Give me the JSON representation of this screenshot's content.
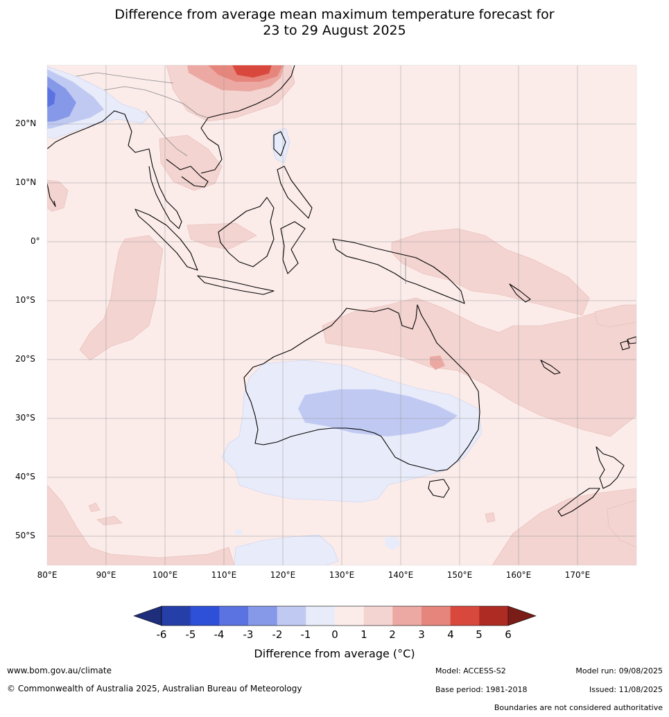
{
  "title_line1": "Difference from average mean maximum temperature forecast for",
  "title_line2": "23 to 29 August 2025",
  "lat_labels": [
    "20°N",
    "10°N",
    "0°",
    "10°S",
    "20°S",
    "30°S",
    "40°S",
    "50°S"
  ],
  "lon_labels": [
    "80°E",
    "90°E",
    "100°E",
    "110°E",
    "120°E",
    "130°E",
    "140°E",
    "150°E",
    "160°E",
    "170°E"
  ],
  "colorbar": {
    "ticks": [
      "-6",
      "-5",
      "-4",
      "-3",
      "-2",
      "-1",
      "0",
      "1",
      "2",
      "3",
      "4",
      "5",
      "6"
    ],
    "colors": [
      "#1f2e7a",
      "#263ea8",
      "#2e4fd8",
      "#5a73e0",
      "#8599e8",
      "#c0c9f2",
      "#e8ebf9",
      "#fbecea",
      "#f3d4d1",
      "#eca8a2",
      "#e6857b",
      "#d9483c",
      "#ad2b22",
      "#7a1c18"
    ],
    "label": "Difference from average (°C)"
  },
  "footer": {
    "website": "www.bom.gov.au/climate",
    "copyright": "© Commonwealth of Australia 2025, Australian Bureau of Meteorology",
    "model": "Model: ACCESS-S2",
    "base_period": "Base period: 1981-2018",
    "model_run": "Model run: 09/08/2025",
    "issued": "Issued: 11/08/2025",
    "disclaimer": "Boundaries are not considered authoritative"
  }
}
